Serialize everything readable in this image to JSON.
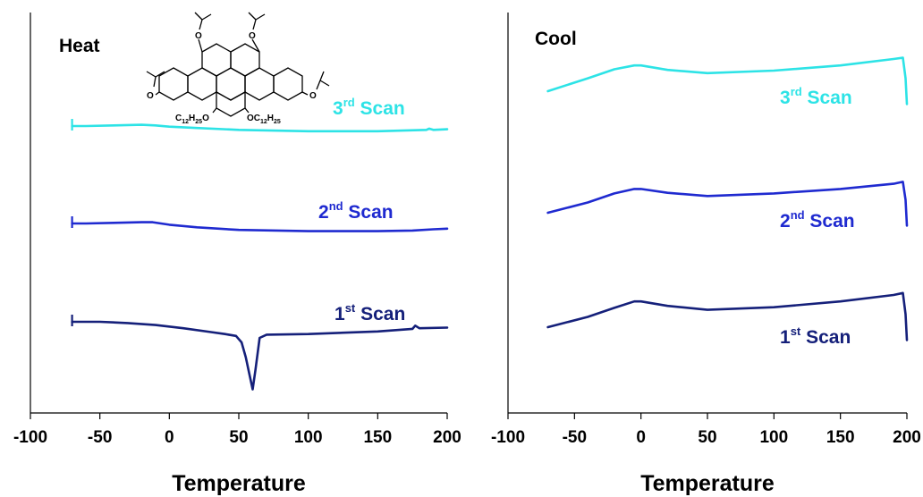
{
  "colors": {
    "scan1": "#15207a",
    "scan2": "#1f2ad0",
    "scan3": "#2de3e6"
  },
  "chart_data": [
    {
      "type": "line",
      "panel": "Heat",
      "title": "Heat",
      "xlabel": "Temperature",
      "ylabel": "",
      "xlim": [
        -100,
        200
      ],
      "xticks": [
        "-100",
        "-50",
        "0",
        "50",
        "100",
        "150",
        "200"
      ],
      "yticks": "hidden",
      "grid": false,
      "annotation": "C12H25O / OC12H25 triphenylene derivative structure",
      "series": [
        {
          "name": "3rd Scan",
          "ordinal": "3",
          "suffix": "rd",
          "word": "Scan",
          "colorKey": "scan3",
          "x": [
            -70,
            -68,
            -60,
            -40,
            -20,
            -10,
            0,
            20,
            50,
            100,
            150,
            185,
            187,
            190,
            200
          ],
          "y": [
            0.0,
            0.0,
            0.0,
            0.01,
            0.02,
            0.01,
            -0.01,
            -0.03,
            -0.06,
            -0.08,
            -0.08,
            -0.06,
            -0.04,
            -0.06,
            -0.05
          ],
          "spikes_x": [
            -70
          ]
        },
        {
          "name": "2nd Scan",
          "ordinal": "2",
          "suffix": "nd",
          "word": "Scan",
          "colorKey": "scan2",
          "x": [
            -70,
            -68,
            -60,
            -40,
            -20,
            -12,
            0,
            20,
            50,
            100,
            150,
            175,
            190,
            200
          ],
          "y": [
            0.0,
            0.0,
            0.0,
            0.01,
            0.02,
            0.02,
            -0.02,
            -0.06,
            -0.1,
            -0.12,
            -0.12,
            -0.11,
            -0.09,
            -0.08
          ],
          "spikes_x": [
            -70
          ]
        },
        {
          "name": "1st Scan",
          "ordinal": "1",
          "suffix": "st",
          "word": "Scan",
          "colorKey": "scan1",
          "x": [
            -70,
            -68,
            -50,
            -30,
            -10,
            10,
            30,
            40,
            48,
            52,
            55,
            58,
            60,
            62,
            65,
            70,
            100,
            150,
            175,
            177,
            180,
            200
          ],
          "y": [
            0.0,
            0.0,
            0.0,
            -0.02,
            -0.05,
            -0.1,
            -0.16,
            -0.19,
            -0.22,
            -0.32,
            -0.55,
            -0.85,
            -1.05,
            -0.75,
            -0.25,
            -0.2,
            -0.19,
            -0.15,
            -0.11,
            -0.06,
            -0.1,
            -0.09
          ],
          "spikes_x": [
            -70
          ]
        }
      ]
    },
    {
      "type": "line",
      "panel": "Cool",
      "title": "Cool",
      "xlabel": "Temperature",
      "ylabel": "",
      "xlim": [
        -100,
        200
      ],
      "xticks": [
        "-100",
        "-50",
        "0",
        "50",
        "100",
        "150",
        "200"
      ],
      "yticks": "hidden",
      "grid": false,
      "series": [
        {
          "name": "3rd Scan",
          "ordinal": "3",
          "suffix": "rd",
          "word": "Scan",
          "colorKey": "scan3",
          "x": [
            -70,
            -40,
            -20,
            -5,
            0,
            20,
            50,
            100,
            150,
            190,
            197,
            199,
            200
          ],
          "y": [
            0.0,
            0.2,
            0.34,
            0.4,
            0.4,
            0.33,
            0.28,
            0.32,
            0.4,
            0.5,
            0.52,
            0.2,
            -0.2
          ],
          "spikes_x": []
        },
        {
          "name": "2nd Scan",
          "ordinal": "2",
          "suffix": "nd",
          "word": "Scan",
          "colorKey": "scan2",
          "x": [
            -70,
            -40,
            -20,
            -5,
            0,
            20,
            50,
            100,
            150,
            190,
            197,
            199,
            200
          ],
          "y": [
            0.0,
            0.16,
            0.3,
            0.37,
            0.37,
            0.31,
            0.26,
            0.3,
            0.37,
            0.45,
            0.48,
            0.2,
            -0.2
          ],
          "spikes_x": []
        },
        {
          "name": "1st Scan",
          "ordinal": "1",
          "suffix": "st",
          "word": "Scan",
          "colorKey": "scan1",
          "x": [
            -70,
            -40,
            -20,
            -5,
            0,
            20,
            50,
            100,
            150,
            190,
            197,
            199,
            200
          ],
          "y": [
            0.0,
            0.16,
            0.3,
            0.4,
            0.4,
            0.33,
            0.27,
            0.31,
            0.4,
            0.5,
            0.53,
            0.2,
            -0.2
          ],
          "spikes_x": []
        }
      ]
    }
  ]
}
